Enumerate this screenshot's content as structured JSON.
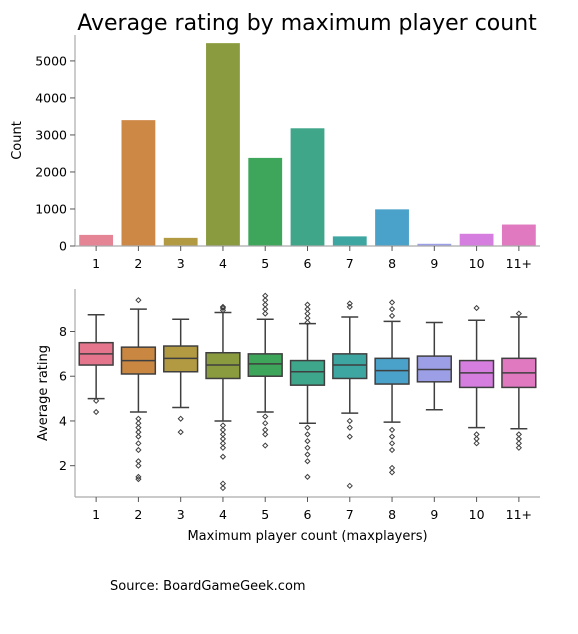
{
  "title": "Average rating by maximum player count",
  "source": "Source: BoardGameGeek.com",
  "chart_data": [
    {
      "type": "bar",
      "categories": [
        "1",
        "2",
        "3",
        "4",
        "5",
        "6",
        "7",
        "8",
        "9",
        "10",
        "11+"
      ],
      "values": [
        300,
        3400,
        220,
        5480,
        2380,
        3180,
        260,
        990,
        60,
        330,
        580
      ],
      "colors": [
        "#e58495",
        "#cd8846",
        "#b29a43",
        "#8a9b3f",
        "#3ea65a",
        "#3fa68a",
        "#3ea6a0",
        "#4aa1c9",
        "#9c9fe6",
        "#d67ee0",
        "#e079c0"
      ],
      "xlabel": "",
      "ylabel": "Count",
      "ylim": [
        0,
        5700
      ],
      "yticks": [
        0,
        1000,
        2000,
        3000,
        4000,
        5000
      ]
    },
    {
      "type": "box",
      "categories": [
        "1",
        "2",
        "3",
        "4",
        "5",
        "6",
        "7",
        "8",
        "9",
        "10",
        "11+"
      ],
      "xlabel": "Maximum player count (maxplayers)",
      "ylabel": "Average rating",
      "ylim": [
        0.6,
        9.9
      ],
      "yticks": [
        2,
        4,
        6,
        8
      ],
      "colors": [
        "#e5758c",
        "#c98742",
        "#b29a43",
        "#8a9b3f",
        "#3ea65a",
        "#3ea68a",
        "#3ea6a0",
        "#4aa1c9",
        "#9c9fe6",
        "#d67ee0",
        "#e079c0"
      ],
      "boxes": [
        {
          "q1": 6.5,
          "median": 7.0,
          "q3": 7.5,
          "whislo": 5.0,
          "whishi": 8.75,
          "fliers": [
            4.4,
            4.9
          ]
        },
        {
          "q1": 6.1,
          "median": 6.7,
          "q3": 7.3,
          "whislo": 4.4,
          "whishi": 9.0,
          "fliers": [
            9.4,
            4.1,
            3.9,
            3.7,
            3.5,
            3.3,
            3.0,
            2.7,
            2.2,
            2.0,
            1.5,
            1.4
          ]
        },
        {
          "q1": 6.2,
          "median": 6.8,
          "q3": 7.35,
          "whislo": 4.6,
          "whishi": 8.55,
          "fliers": [
            4.1,
            3.5
          ]
        },
        {
          "q1": 5.9,
          "median": 6.5,
          "q3": 7.05,
          "whislo": 4.0,
          "whishi": 8.85,
          "fliers": [
            9.1,
            9.05,
            8.95,
            3.8,
            3.6,
            3.4,
            3.2,
            3.0,
            2.8,
            2.4,
            1.2,
            1.0
          ]
        },
        {
          "q1": 6.0,
          "median": 6.55,
          "q3": 7.0,
          "whislo": 4.4,
          "whishi": 8.55,
          "fliers": [
            9.6,
            9.4,
            9.2,
            9.0,
            8.8,
            4.2,
            3.9,
            3.6,
            3.4,
            2.9
          ]
        },
        {
          "q1": 5.6,
          "median": 6.2,
          "q3": 6.7,
          "whislo": 3.9,
          "whishi": 8.35,
          "fliers": [
            9.2,
            9.0,
            8.8,
            8.6,
            8.4,
            3.7,
            3.4,
            3.1,
            2.8,
            2.5,
            2.2,
            1.5
          ]
        },
        {
          "q1": 5.9,
          "median": 6.5,
          "q3": 7.0,
          "whislo": 4.35,
          "whishi": 8.65,
          "fliers": [
            9.25,
            9.1,
            4.0,
            3.7,
            3.3,
            1.1
          ]
        },
        {
          "q1": 5.65,
          "median": 6.25,
          "q3": 6.8,
          "whislo": 3.95,
          "whishi": 8.45,
          "fliers": [
            9.3,
            9.0,
            8.7,
            3.6,
            3.3,
            3.0,
            2.7,
            1.9,
            1.7
          ]
        },
        {
          "q1": 5.75,
          "median": 6.3,
          "q3": 6.9,
          "whislo": 4.5,
          "whishi": 8.4,
          "fliers": []
        },
        {
          "q1": 5.5,
          "median": 6.15,
          "q3": 6.7,
          "whislo": 3.7,
          "whishi": 8.5,
          "fliers": [
            9.05,
            3.4,
            3.2,
            3.0
          ]
        },
        {
          "q1": 5.5,
          "median": 6.15,
          "q3": 6.8,
          "whislo": 3.65,
          "whishi": 8.65,
          "fliers": [
            8.8,
            3.4,
            3.2,
            3.0,
            2.8
          ]
        }
      ]
    }
  ]
}
